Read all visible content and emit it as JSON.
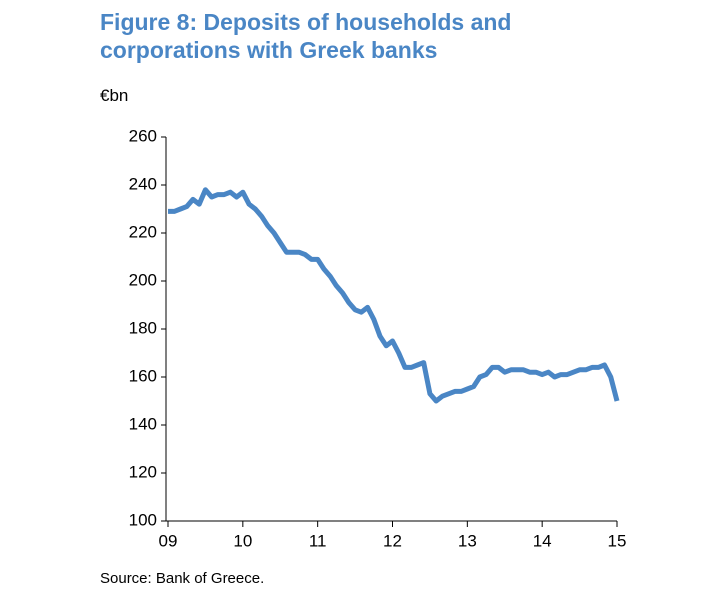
{
  "chart_data": {
    "type": "line",
    "title": "Figure 8: Deposits of households and corporations with Greek banks",
    "y_label": "€bn",
    "source": "Source: Bank of Greece.",
    "categories": [
      "09",
      null,
      null,
      null,
      null,
      null,
      null,
      null,
      null,
      null,
      null,
      null,
      "10",
      null,
      null,
      null,
      null,
      null,
      null,
      null,
      null,
      null,
      null,
      null,
      "11",
      null,
      null,
      null,
      null,
      null,
      null,
      null,
      null,
      null,
      null,
      null,
      "12",
      null,
      null,
      null,
      null,
      null,
      null,
      null,
      null,
      null,
      null,
      null,
      "13",
      null,
      null,
      null,
      null,
      null,
      null,
      null,
      null,
      null,
      null,
      null,
      "14",
      null,
      null,
      null,
      null,
      null,
      null,
      null,
      null,
      null,
      null,
      null,
      "15"
    ],
    "series": [
      {
        "name": "Deposits",
        "color": "#4a86c5",
        "values": [
          229,
          229,
          230,
          231,
          234,
          232,
          238,
          235,
          236,
          236,
          237,
          235,
          237,
          232,
          230,
          227,
          223,
          220,
          216,
          212,
          212,
          212,
          211,
          209,
          209,
          205,
          202,
          198,
          195,
          191,
          188,
          187,
          189,
          184,
          177,
          173,
          175,
          170,
          164,
          164,
          165,
          166,
          153,
          150,
          152,
          153,
          154,
          154,
          155,
          156,
          160,
          161,
          164,
          164,
          162,
          163,
          163,
          163,
          162,
          162,
          161,
          162,
          160,
          161,
          161,
          162,
          163,
          163,
          164,
          164,
          165,
          160,
          150
        ]
      }
    ],
    "ylim": [
      100,
      260
    ],
    "yticks": [
      100,
      120,
      140,
      160,
      180,
      200,
      220,
      240,
      260
    ]
  }
}
